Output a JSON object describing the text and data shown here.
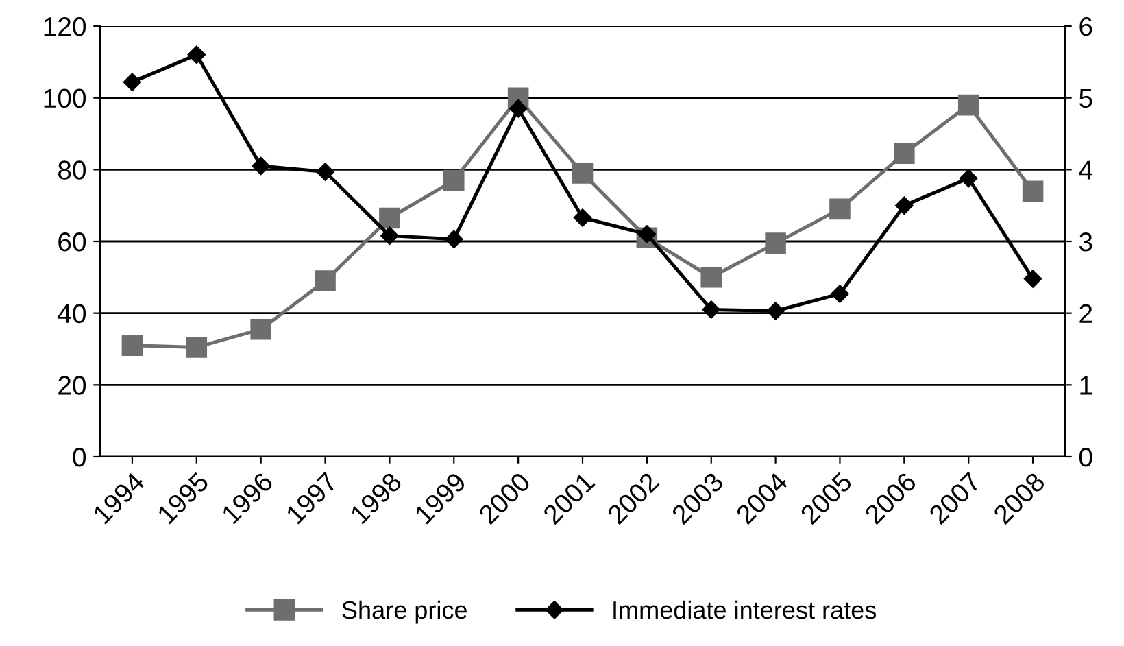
{
  "chart_data": {
    "type": "line",
    "categories": [
      "1994",
      "1995",
      "1996",
      "1997",
      "1998",
      "1999",
      "2000",
      "2001",
      "2002",
      "2003",
      "2004",
      "2005",
      "2006",
      "2007",
      "2008"
    ],
    "series": [
      {
        "name": "Share price",
        "color": "#6e6e6e",
        "marker": "square",
        "values": [
          31,
          30.5,
          35.5,
          49,
          66.5,
          77,
          100,
          79,
          61,
          50,
          59.5,
          69,
          84.5,
          98,
          74
        ]
      },
      {
        "name": "Immediate interest rates",
        "color": "#000000",
        "marker": "diamond",
        "axis": "y2",
        "values": [
          5.22,
          5.6,
          4.05,
          3.97,
          3.08,
          3.03,
          4.85,
          3.33,
          3.1,
          2.05,
          2.03,
          2.27,
          3.5,
          3.88,
          2.48
        ]
      }
    ],
    "ylim": [
      0,
      120
    ],
    "yticks": [
      0,
      20,
      40,
      60,
      80,
      100,
      120
    ],
    "y2lim": [
      0,
      6
    ],
    "y2ticks": [
      0,
      1,
      2,
      3,
      4,
      5,
      6
    ],
    "grid": "y",
    "legend": "bottom",
    "line_style": "solid"
  }
}
